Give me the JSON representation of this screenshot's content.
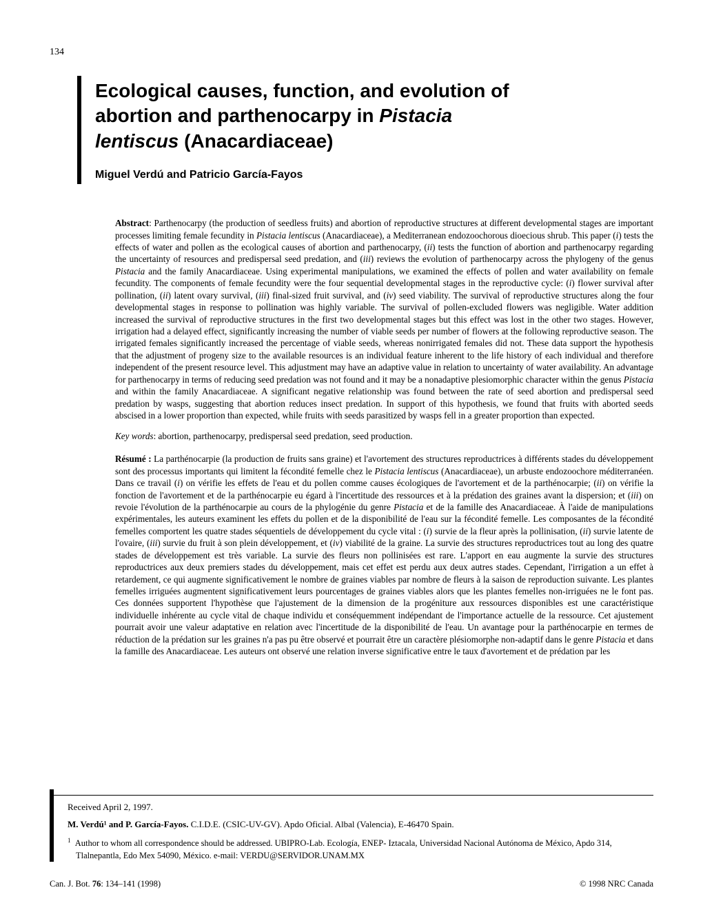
{
  "page_number": "134",
  "title_line1": "Ecological causes, function, and evolution of",
  "title_line2a": "abortion and parthenocarpy in ",
  "title_line2b": "Pistacia",
  "title_line3a": "lentiscus",
  "title_line3b": " (Anacardiaceae)",
  "authors": "Miguel Verdú and Patricio García-Fayos",
  "abstract_label": "Abstract",
  "abstract_text": ": Parthenocarpy (the production of seedless fruits) and abortion of reproductive structures at different developmental stages are important processes limiting female fecundity in Pistacia lentiscus (Anacardiaceae), a Mediterranean endozoochorous dioecious shrub. This paper (i) tests the effects of water and pollen as the ecological causes of abortion and parthenocarpy, (ii) tests the function of abortion and parthenocarpy regarding the uncertainty of resources and predispersal seed predation, and (iii) reviews the evolution of parthenocarpy across the phylogeny of the genus Pistacia and the family Anacardiaceae. Using experimental manipulations, we examined the effects of pollen and water availability on female fecundity. The components of female fecundity were the four sequential developmental stages in the reproductive cycle: (i) flower survival after pollination, (ii) latent ovary survival, (iii) final-sized fruit survival, and (iv) seed viability. The survival of reproductive structures along the four developmental stages in response to pollination was highly variable. The survival of pollen-excluded flowers was negligible. Water addition increased the survival of reproductive structures in the first two developmental stages but this effect was lost in the other two stages. However, irrigation had a delayed effect, significantly increasing the number of viable seeds per number of flowers at the following reproductive season. The irrigated females significantly increased the percentage of viable seeds, whereas nonirrigated females did not. These data support the hypothesis that the adjustment of progeny size to the available resources is an individual feature inherent to the life history of each individual and therefore independent of the present resource level. This adjustment may have an adaptive value in relation to uncertainty of water availability. An advantage for parthenocarpy in terms of reducing seed predation was not found and it may be a nonadaptive plesiomorphic character within the genus Pistacia and within the family Anacardiaceae. A significant negative relationship was found between the rate of seed abortion and predispersal seed predation by wasps, suggesting that abortion reduces insect predation. In support of this hypothesis, we found that fruits with aborted seeds abscised in a lower proportion than expected, while fruits with seeds parasitized by wasps fell in a greater proportion than expected.",
  "keywords_label": "Key words",
  "keywords_text": ": abortion, parthenocarpy, predispersal seed predation, seed production.",
  "resume_label": "Résumé :",
  "resume_text": " La parthénocarpie (la production de fruits sans graine) et l'avortement des structures reproductrices à différents stades du développement sont des processus importants qui limitent la fécondité femelle chez le Pistacia lentiscus (Anacardiaceae), un arbuste endozoochore méditerranéen. Dans ce travail (i) on vérifie les effets de l'eau et du pollen comme causes écologiques de l'avortement et de la parthénocarpie; (ii) on vérifie la fonction de l'avortement et de la parthénocarpie eu égard à l'incertitude des ressources et à la prédation des graines avant la dispersion; et (iii) on revoie l'évolution de la parthénocarpie au cours de la phylogénie du genre Pistacia et de la famille des Anacardiaceae. À l'aide de manipulations expérimentales, les auteurs examinent les effets du pollen et de la disponibilité de l'eau sur la fécondité femelle. Les composantes de la fécondité femelles comportent les quatre stades séquentiels de développement du cycle vital : (i) survie de la fleur après la pollinisation, (ii) survie latente de l'ovaire, (iii) survie du fruit à son plein développement, et (iv) viabilité de la graine. La survie des structures reproductrices tout au long des quatre stades de développement est très variable. La survie des fleurs non pollinisées est rare. L'apport en eau augmente la survie des structures reproductrices aux deux premiers stades du développement, mais cet effet est perdu aux deux autres stades. Cependant, l'irrigation a un effet à retardement, ce qui augmente significativement le nombre de graines viables par nombre de fleurs à la saison de reproduction suivante. Les plantes femelles irriguées augmentent significativement leurs pourcentages de graines viables alors que les plantes femelles non-irriguées ne le font pas. Ces données supportent l'hypothèse que l'ajustement de la dimension de la progéniture aux ressources disponibles est une caractéristique individuelle inhérente au cycle vital de chaque individu et conséquemment indépendant de l'importance actuelle de la ressource. Cet ajustement pourrait avoir une valeur adaptative en relation avec l'incertitude de la disponibilité de l'eau. Un avantage pour la parthénocarpie en termes de réduction de la prédation sur les graines n'a pas pu être observé et pourrait être un caractère plésiomorphe non-adaptif dans le genre Pistacia et dans la famille des Anacardiaceae. Les auteurs ont observé une relation inverse significative entre le taux d'avortement et de prédation par les",
  "received": "Received April 2, 1997.",
  "affil_names": "M. Verdú¹ and P. García-Fayos.",
  "affil_rest": " C.I.D.E. (CSIC-UV-GV). Apdo Oficial. Albal (Valencia), E-46470  Spain.",
  "corr_note": "Author to whom all correspondence should be addressed. UBIPRO-Lab. Ecología, ENEP- Iztacala, Universidad Nacional Autónoma de México, Apdo 314, Tlalnepantla, Edo Mex  54090, México. e-mail: VERDU@SERVIDOR.UNAM.MX",
  "journal_ref": "Can. J. Bot. ",
  "journal_vol": "76",
  "journal_pages": ": 134–141 (1998)",
  "copyright": "© 1998 NRC Canada"
}
